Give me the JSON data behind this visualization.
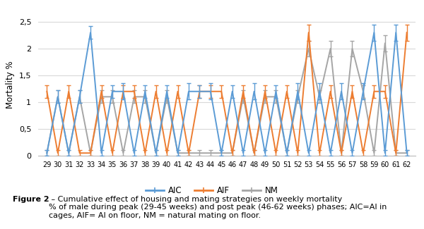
{
  "weeks": [
    29,
    30,
    31,
    32,
    33,
    34,
    35,
    36,
    37,
    38,
    39,
    40,
    41,
    42,
    43,
    44,
    45,
    46,
    47,
    48,
    49,
    50,
    51,
    52,
    53,
    54,
    55,
    56,
    57,
    58,
    59,
    60,
    61,
    62
  ],
  "AIC": [
    0.05,
    1.1,
    0.05,
    1.1,
    2.3,
    0.05,
    1.2,
    1.2,
    0.05,
    1.2,
    0.05,
    1.2,
    0.05,
    1.2,
    1.2,
    1.2,
    0.05,
    1.2,
    0.05,
    1.2,
    0.05,
    1.2,
    0.05,
    1.2,
    0.05,
    1.2,
    0.05,
    1.2,
    0.05,
    1.2,
    2.3,
    0.05,
    2.3,
    0.05
  ],
  "AIF": [
    1.2,
    0.05,
    1.2,
    0.05,
    0.05,
    1.2,
    0.05,
    1.2,
    1.2,
    0.05,
    1.2,
    0.05,
    1.2,
    0.05,
    1.2,
    1.2,
    1.2,
    0.05,
    1.2,
    0.05,
    1.2,
    0.05,
    1.2,
    0.05,
    2.3,
    0.05,
    1.2,
    0.05,
    1.2,
    0.05,
    1.2,
    1.2,
    0.05,
    2.3
  ],
  "NM": [
    0.05,
    1.1,
    0.05,
    1.1,
    0.05,
    1.1,
    1.1,
    0.05,
    1.1,
    1.1,
    0.05,
    1.1,
    0.05,
    0.05,
    0.05,
    0.05,
    0.05,
    0.05,
    1.1,
    0.05,
    1.1,
    1.1,
    0.05,
    1.1,
    2.0,
    1.1,
    2.0,
    0.05,
    2.0,
    1.2,
    0.05,
    2.1,
    0.05,
    0.05
  ],
  "AIC_err": [
    0.05,
    0.12,
    0.05,
    0.12,
    0.12,
    0.05,
    0.12,
    0.15,
    0.05,
    0.12,
    0.05,
    0.12,
    0.05,
    0.15,
    0.12,
    0.15,
    0.05,
    0.12,
    0.05,
    0.15,
    0.05,
    0.12,
    0.05,
    0.15,
    0.05,
    0.15,
    0.05,
    0.15,
    0.05,
    0.15,
    0.15,
    0.05,
    0.15,
    0.05
  ],
  "AIF_err": [
    0.12,
    0.05,
    0.12,
    0.05,
    0.05,
    0.12,
    0.05,
    0.12,
    0.12,
    0.05,
    0.12,
    0.05,
    0.12,
    0.05,
    0.12,
    0.12,
    0.12,
    0.05,
    0.12,
    0.05,
    0.12,
    0.05,
    0.12,
    0.05,
    0.15,
    0.05,
    0.12,
    0.05,
    0.12,
    0.05,
    0.12,
    0.12,
    0.05,
    0.15
  ],
  "NM_err": [
    0.05,
    0.12,
    0.05,
    0.12,
    0.05,
    0.12,
    0.12,
    0.05,
    0.12,
    0.12,
    0.05,
    0.12,
    0.05,
    0.05,
    0.05,
    0.05,
    0.05,
    0.05,
    0.12,
    0.05,
    0.12,
    0.12,
    0.05,
    0.12,
    0.15,
    0.12,
    0.15,
    0.05,
    0.15,
    0.12,
    0.05,
    0.15,
    0.05,
    0.05
  ],
  "AIC_color": "#5B9BD5",
  "AIF_color": "#ED7D31",
  "NM_color": "#A5A5A5",
  "ylabel": "Mortality %",
  "yticks": [
    0,
    0.5,
    1.0,
    1.5,
    2.0,
    2.5
  ],
  "ytick_labels": [
    "0",
    "0,5",
    "1",
    "1,5",
    "2",
    "2,5"
  ],
  "ylim": [
    0,
    2.65
  ],
  "bg_color": "#FFFFFF",
  "grid_color": "#D9D9D9",
  "caption_bold": "Figure 2",
  "caption_normal": " – Cumulative effect of housing and mating strategies on weekly mortality\n% of male during peak (29-45 weeks) and post peak (46-62 weeks) phases; AIC=AI in\ncages, AIF= AI on floor, NM = natural mating on floor.",
  "legend_labels": [
    "AIC",
    "AIF",
    "NM"
  ]
}
